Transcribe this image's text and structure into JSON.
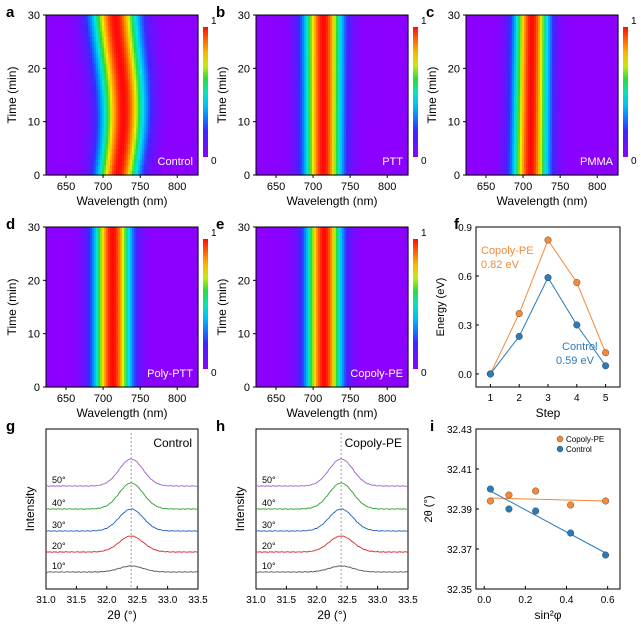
{
  "heatmaps": [
    {
      "letter": "a",
      "label": "Control",
      "center_start": 720,
      "center_end": 722,
      "center_wiggle": 7,
      "width_start": 29,
      "width_end": 33
    },
    {
      "letter": "b",
      "label": "PTT",
      "center_start": 714,
      "center_end": 714,
      "center_wiggle": 0,
      "width_start": 26,
      "width_end": 27
    },
    {
      "letter": "c",
      "label": "PMMA",
      "center_start": 710,
      "center_end": 712,
      "center_wiggle": 0,
      "width_start": 25,
      "width_end": 24
    },
    {
      "letter": "d",
      "label": "Poly-PTT",
      "center_start": 713,
      "center_end": 713,
      "center_wiggle": 0,
      "width_start": 26,
      "width_end": 26
    },
    {
      "letter": "e",
      "label": "Copoly-PE",
      "center_start": 715,
      "center_end": 715,
      "center_wiggle": 0,
      "width_start": 25,
      "width_end": 25
    }
  ],
  "heatmap_axes": {
    "xlabel": "Wavelength (nm)",
    "ylabel": "Time (min)",
    "xticks": [
      650,
      700,
      750,
      800
    ],
    "yticks": [
      0,
      10,
      20,
      30
    ],
    "xlim": [
      623,
      828
    ],
    "ylim": [
      0,
      30
    ],
    "colorbar_top": "1",
    "colorbar_bottom": "0"
  },
  "energy_panel": {
    "letter": "f",
    "xlabel": "Step",
    "ylabel": "Energy (eV)",
    "xticks": [
      1,
      2,
      3,
      4,
      5
    ],
    "yticks": [
      "0.0",
      "0.3",
      "0.6",
      "0.9"
    ],
    "xlim": [
      0.5,
      5.5
    ],
    "ylim": [
      -0.08,
      0.9
    ],
    "series": [
      {
        "label": "Copoly-PE",
        "value": "0.82 eV",
        "color": "#f5893a",
        "x": [
          1,
          2,
          3,
          4,
          5
        ],
        "y": [
          0,
          0.37,
          0.82,
          0.56,
          0.13
        ]
      },
      {
        "label": "Control",
        "value": "0.59 eV",
        "color": "#2b7bb9",
        "x": [
          1,
          2,
          3,
          4,
          5
        ],
        "y": [
          0,
          0.23,
          0.59,
          0.3,
          0.05
        ]
      }
    ]
  },
  "xrd_panels": [
    {
      "letter": "g",
      "label": "Control"
    },
    {
      "letter": "h",
      "label": "Copoly-PE"
    }
  ],
  "xrd_axes": {
    "xlabel": "2θ (°)",
    "ylabel": "Intensity",
    "xticks": [
      "31.0",
      "31.5",
      "32.0",
      "32.5",
      "33.0",
      "33.5"
    ],
    "xlim": [
      31,
      33.5
    ],
    "peak": 32.4,
    "curves": [
      {
        "label": "10°",
        "color": "#555555"
      },
      {
        "label": "20°",
        "color": "#d62728"
      },
      {
        "label": "30°",
        "color": "#1f5fbf"
      },
      {
        "label": "40°",
        "color": "#2ca02c"
      },
      {
        "label": "50°",
        "color": "#a05fd0"
      }
    ]
  },
  "strain_panel": {
    "letter": "i",
    "xlabel": "sin²φ",
    "ylabel": "2θ  (°)",
    "xticks": [
      "0.0",
      "0.2",
      "0.4",
      "0.6"
    ],
    "yticks": [
      "32.35",
      "32.37",
      "32.39",
      "32.41",
      "32.43"
    ],
    "xlim": [
      -0.04,
      0.66
    ],
    "ylim": [
      32.35,
      32.43
    ],
    "series": [
      {
        "label": "Copoly-PE",
        "color": "#f5893a",
        "x": [
          0.03,
          0.12,
          0.25,
          0.42,
          0.59
        ],
        "y": [
          32.394,
          32.397,
          32.399,
          32.392,
          32.394
        ],
        "fit": [
          32.3955,
          32.394
        ]
      },
      {
        "label": "Control",
        "color": "#2b7bb9",
        "x": [
          0.03,
          0.12,
          0.25,
          0.42,
          0.59
        ],
        "y": [
          32.4,
          32.39,
          32.389,
          32.378,
          32.367
        ],
        "fit": [
          32.399,
          32.368
        ]
      }
    ]
  }
}
